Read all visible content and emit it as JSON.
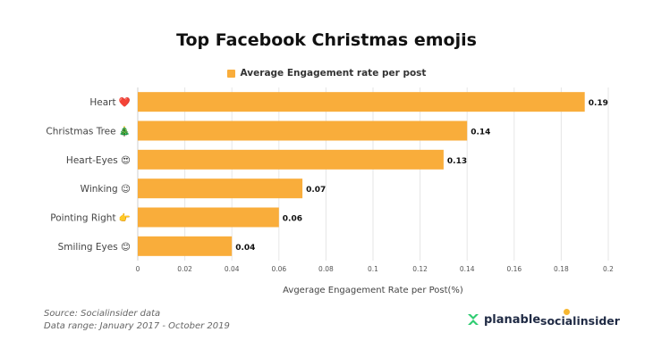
{
  "chart_data": {
    "type": "bar",
    "orientation": "horizontal",
    "title": "Top Facebook Christmas emojis",
    "categories": [
      "Heart ❤️",
      "Christmas Tree 🎄",
      "Heart-Eyes 😍",
      "Winking 😉",
      "Pointing Right 👉",
      "Smiling Eyes 😊"
    ],
    "series": [
      {
        "name": "Average Engagement rate per post",
        "values": [
          0.19,
          0.14,
          0.13,
          0.07,
          0.06,
          0.04
        ]
      }
    ],
    "data_labels": [
      "0.19",
      "0.14",
      "0.13",
      "0.07",
      "0.06",
      "0.04"
    ],
    "xlabel": "Avgerage Engagement Rate per Post(%)",
    "ylabel": "",
    "xlim": [
      0,
      0.2
    ],
    "xticks": [
      "0",
      "0.02",
      "0.04",
      "0.06",
      "0.08",
      "0.1",
      "0.12",
      "0.14",
      "0.16",
      "0.18",
      "0.2"
    ],
    "grid": true,
    "legend_position": "top-center",
    "bar_color": "#f9ad3b"
  },
  "footer": {
    "source": "Source: Socialinsider data",
    "range": "Data range: January 2017 - October 2019"
  },
  "logos": {
    "planable": "planable",
    "socialinsider": "socialinsider"
  }
}
